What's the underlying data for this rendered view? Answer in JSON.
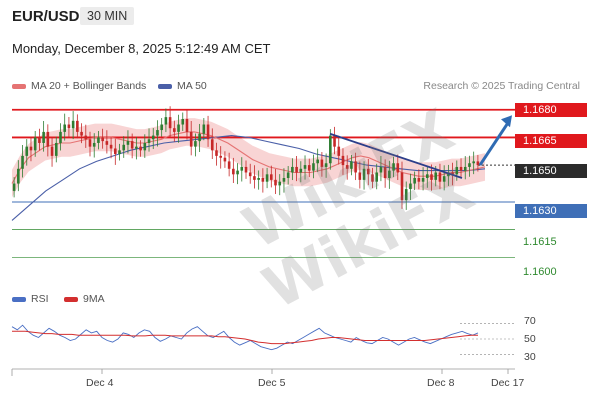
{
  "header": {
    "symbol": "EUR/USD",
    "timeframe": "30 MIN",
    "datetime": "Monday, December 8, 2025 5:12:49 AM CET"
  },
  "legend": {
    "ma20_label": "MA 20 + Bollinger Bands",
    "ma50_label": "MA 50",
    "credit": "Research © 2025 Trading Central"
  },
  "rsi_legend": {
    "rsi_label": "RSI",
    "ma9_label": "9MA"
  },
  "watermark": "WikiFX",
  "colors": {
    "up": "#2e7d32",
    "down": "#c62828",
    "resistance": "#e0181d",
    "support": "#3f6fb7",
    "target": "#2f8a2f",
    "ma20": "#e57373",
    "ma50": "#4a5fa8",
    "band": "#f6c6c6",
    "arrow": "#2f6bb3"
  },
  "chart_data": {
    "type": "candlestick",
    "symbol": "EUR/USD",
    "interval": "30 MIN",
    "y_range": [
      1.1585,
      1.1688
    ],
    "x_ticks": [
      "Dec 4",
      "Dec 5",
      "Dec 8",
      "Dec 17"
    ],
    "levels": [
      {
        "label": "1.1680",
        "value": 1.168,
        "kind": "resistance"
      },
      {
        "label": "1.1665",
        "value": 1.1665,
        "kind": "resistance"
      },
      {
        "label": "1.1650",
        "value": 1.165,
        "kind": "current"
      },
      {
        "label": "1.1630",
        "value": 1.163,
        "kind": "support"
      },
      {
        "label": "1.1615",
        "value": 1.1615,
        "kind": "target"
      },
      {
        "label": "1.1600",
        "value": 1.16,
        "kind": "target"
      }
    ],
    "candles_close": [
      1.164,
      1.1648,
      1.1655,
      1.166,
      1.1658,
      1.1665,
      1.1662,
      1.1668,
      1.166,
      1.1655,
      1.1662,
      1.1668,
      1.1672,
      1.167,
      1.1674,
      1.1668,
      1.1666,
      1.1664,
      1.166,
      1.1662,
      1.1665,
      1.1663,
      1.1661,
      1.1659,
      1.1656,
      1.1658,
      1.1661,
      1.1663,
      1.1659,
      1.166,
      1.1658,
      1.1662,
      1.1664,
      1.1666,
      1.1669,
      1.1672,
      1.1676,
      1.167,
      1.1668,
      1.1672,
      1.1675,
      1.1668,
      1.166,
      1.1663,
      1.1667,
      1.1672,
      1.1664,
      1.1658,
      1.1655,
      1.1654,
      1.1652,
      1.1648,
      1.1645,
      1.1647,
      1.1649,
      1.1646,
      1.1644,
      1.1642,
      1.1643,
      1.1641,
      1.1645,
      1.1642,
      1.1639,
      1.1641,
      1.1643,
      1.1646,
      1.1649,
      1.1646,
      1.1648,
      1.165,
      1.1647,
      1.1651,
      1.1653,
      1.1649,
      1.1651,
      1.1666,
      1.166,
      1.1655,
      1.165,
      1.1648,
      1.1652,
      1.1646,
      1.1642,
      1.1648,
      1.1645,
      1.1641,
      1.1646,
      1.1649,
      1.1643,
      1.1647,
      1.1651,
      1.1646,
      1.1631,
      1.1637,
      1.164,
      1.1643,
      1.1641,
      1.1643,
      1.1645,
      1.1642,
      1.1646,
      1.1641,
      1.1644,
      1.1646,
      1.1645,
      1.1649,
      1.1647,
      1.1649,
      1.1651,
      1.1652,
      1.165
    ],
    "ma20": [
      1.164,
      1.1648,
      1.1654,
      1.1657,
      1.166,
      1.1661,
      1.1662,
      1.1662,
      1.1663,
      1.1664,
      1.1665,
      1.1665,
      1.1665,
      1.1664,
      1.1663,
      1.1662,
      1.1662,
      1.1663,
      1.1664,
      1.1666,
      1.1667,
      1.1668,
      1.1668,
      1.1667,
      1.1666,
      1.1664,
      1.1662,
      1.1659,
      1.1656,
      1.1653,
      1.1651,
      1.1649,
      1.1648,
      1.1647,
      1.1646,
      1.1646,
      1.1646,
      1.1647,
      1.1648,
      1.165,
      1.1652,
      1.1654,
      1.1655,
      1.1654,
      1.1652,
      1.165,
      1.1648,
      1.1646,
      1.1645,
      1.1644,
      1.1644,
      1.1644,
      1.1645,
      1.1646,
      1.1646,
      1.1647,
      1.1648,
      1.1649
    ],
    "ma50": [
      1.162,
      1.1628,
      1.1636,
      1.1642,
      1.1648,
      1.1652,
      1.1655,
      1.1658,
      1.166,
      1.1662,
      1.1663,
      1.1664,
      1.1665,
      1.1666,
      1.1665,
      1.1663,
      1.1661,
      1.1659,
      1.1656,
      1.1654,
      1.1652,
      1.165,
      1.1649,
      1.1648,
      1.1647,
      1.1647,
      1.1647,
      1.1647,
      1.1648
    ],
    "trendline": {
      "from": 1.1667,
      "to": 1.1643
    },
    "projection": {
      "from": 1.165,
      "to": 1.1677
    },
    "rsi": {
      "ticks": [
        70,
        50,
        30
      ],
      "range": [
        20,
        80
      ],
      "rsi": [
        66,
        62,
        68,
        60,
        55,
        52,
        58,
        64,
        60,
        55,
        52,
        48,
        50,
        56,
        62,
        58,
        60,
        52,
        48,
        46,
        50,
        58,
        56,
        52,
        58,
        62,
        60,
        52,
        47,
        50,
        54,
        52,
        50,
        58,
        63,
        66,
        60,
        54,
        52,
        56,
        60,
        52,
        46,
        42,
        45,
        48,
        44,
        40,
        38,
        36,
        38,
        42,
        46,
        44,
        48,
        52,
        56,
        60,
        64,
        58,
        55,
        52,
        50,
        48,
        46,
        52,
        48,
        45,
        44,
        48,
        52,
        50,
        46,
        42,
        46,
        50,
        52,
        49,
        46,
        44,
        47,
        50,
        53,
        56,
        58,
        60,
        57,
        55,
        58
      ],
      "ma9": [
        60,
        60,
        60,
        59,
        58,
        57,
        57,
        56,
        56,
        56,
        55,
        55,
        55,
        55,
        55,
        55,
        55,
        55,
        54,
        54,
        54,
        55,
        55,
        55,
        54,
        54,
        54,
        54,
        54,
        54,
        54,
        53,
        53,
        52,
        51,
        50,
        48,
        46,
        45,
        44,
        44,
        44,
        45,
        46,
        47,
        48,
        50,
        51,
        52,
        52,
        51,
        50,
        49,
        48,
        48,
        48,
        48,
        48,
        48,
        48,
        48,
        48,
        48,
        49,
        50,
        51,
        52,
        53,
        54,
        55,
        55
      ]
    }
  }
}
